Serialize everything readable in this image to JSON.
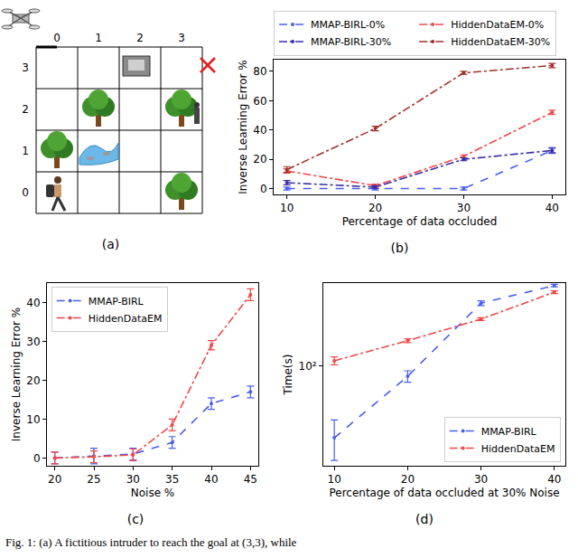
{
  "diagram": {
    "label": "(a)",
    "columns": [
      "0",
      "1",
      "2",
      "3"
    ],
    "rows": [
      "3",
      "2",
      "1",
      "0"
    ],
    "items": [
      {
        "kind": "drone",
        "col": 0,
        "row": 3
      },
      {
        "kind": "tank",
        "col": 2,
        "row": 3
      },
      {
        "kind": "goal",
        "col": 3,
        "row": 3
      },
      {
        "kind": "tree",
        "col": 1,
        "row": 2
      },
      {
        "kind": "tree",
        "col": 3,
        "row": 2
      },
      {
        "kind": "soldier",
        "col": 3,
        "row": 2
      },
      {
        "kind": "tree",
        "col": 0,
        "row": 1
      },
      {
        "kind": "river",
        "col": 1,
        "row": 1
      },
      {
        "kind": "hiker",
        "col": 0,
        "row": 0
      },
      {
        "kind": "tree",
        "col": 3,
        "row": 0
      }
    ]
  },
  "chart_data": [
    {
      "type": "line",
      "label": "(b)",
      "xlabel": "Percentage of data occluded",
      "ylabel": "Inverse Learning Error %",
      "x": [
        10,
        20,
        30,
        40
      ],
      "xlim": [
        8.5,
        41.5
      ],
      "xticks": [
        10,
        20,
        30,
        40
      ],
      "ylim": [
        -4,
        88
      ],
      "yticks": [
        0,
        20,
        40,
        60,
        80
      ],
      "legend": "top",
      "series": [
        {
          "name": "MMAP-BIRL-0%",
          "color": "#4a5ef0",
          "line_style": "dash",
          "values": [
            0,
            0,
            0,
            26
          ],
          "errors": [
            1,
            1,
            1,
            2
          ]
        },
        {
          "name": "HiddenDataEM-0%",
          "color": "#f0484a",
          "line_style": "dashdot",
          "values": [
            12,
            2,
            22,
            52
          ],
          "errors": [
            1.5,
            1,
            1,
            1.5
          ]
        },
        {
          "name": "MMAP-BIRL-30%",
          "color": "#3a2ea8",
          "line_style": "dashdot",
          "values": [
            4,
            1,
            20,
            26
          ],
          "errors": [
            1.5,
            1,
            1,
            1.5
          ]
        },
        {
          "name": "HiddenDataEM-30%",
          "color": "#a0302c",
          "line_style": "dashdot",
          "values": [
            13,
            41,
            79,
            84
          ],
          "errors": [
            2,
            1.5,
            1,
            1.5
          ]
        }
      ]
    },
    {
      "type": "line",
      "label": "(c)",
      "xlabel": "Noise %",
      "ylabel": "Inverse Learning Error %",
      "x": [
        20,
        25,
        30,
        35,
        40,
        45
      ],
      "xlim": [
        19,
        46
      ],
      "xticks": [
        20,
        25,
        30,
        35,
        40,
        45
      ],
      "ylim": [
        -2,
        45
      ],
      "yticks": [
        0,
        10,
        20,
        30,
        40
      ],
      "legend": "upper left",
      "series": [
        {
          "name": "MMAP-BIRL",
          "color": "#4a5ef0",
          "line_style": "dash",
          "values": [
            0,
            0.5,
            1,
            4,
            14,
            17
          ],
          "errors": [
            1.5,
            2,
            1.5,
            1.5,
            1.5,
            1.5
          ]
        },
        {
          "name": "HiddenDataEM",
          "color": "#f0484a",
          "line_style": "dashdot",
          "values": [
            0,
            0.3,
            0.8,
            8.5,
            29,
            42
          ],
          "errors": [
            1.5,
            1.5,
            1.5,
            1.5,
            1.2,
            1.5
          ]
        }
      ]
    },
    {
      "type": "line",
      "label": "(d)",
      "xlabel": "Percentage of data occluded at 30% Noise",
      "ylabel": "Time(s)",
      "log": "y",
      "x": [
        10,
        20,
        30,
        40
      ],
      "xlim": [
        8.5,
        41.5
      ],
      "xticks": [
        10,
        20,
        30,
        40
      ],
      "ylim": [
        30,
        270
      ],
      "yticks": [
        {
          "value": 100,
          "label": "10²"
        }
      ],
      "legend": "lower right",
      "series": [
        {
          "name": "MMAP-BIRL",
          "color": "#4a5ef0",
          "line_style": "dash",
          "values": [
            42,
            88,
            212,
            262
          ],
          "errors": [
            10,
            6,
            6,
            4
          ]
        },
        {
          "name": "HiddenDataEM",
          "color": "#f0484a",
          "line_style": "dashdot",
          "values": [
            106,
            135,
            175,
            242
          ],
          "errors": [
            5,
            3,
            3,
            4
          ]
        }
      ]
    }
  ],
  "caption": "Fig. 1: (a) A fictitious intruder to reach the goal at (3,3), while"
}
